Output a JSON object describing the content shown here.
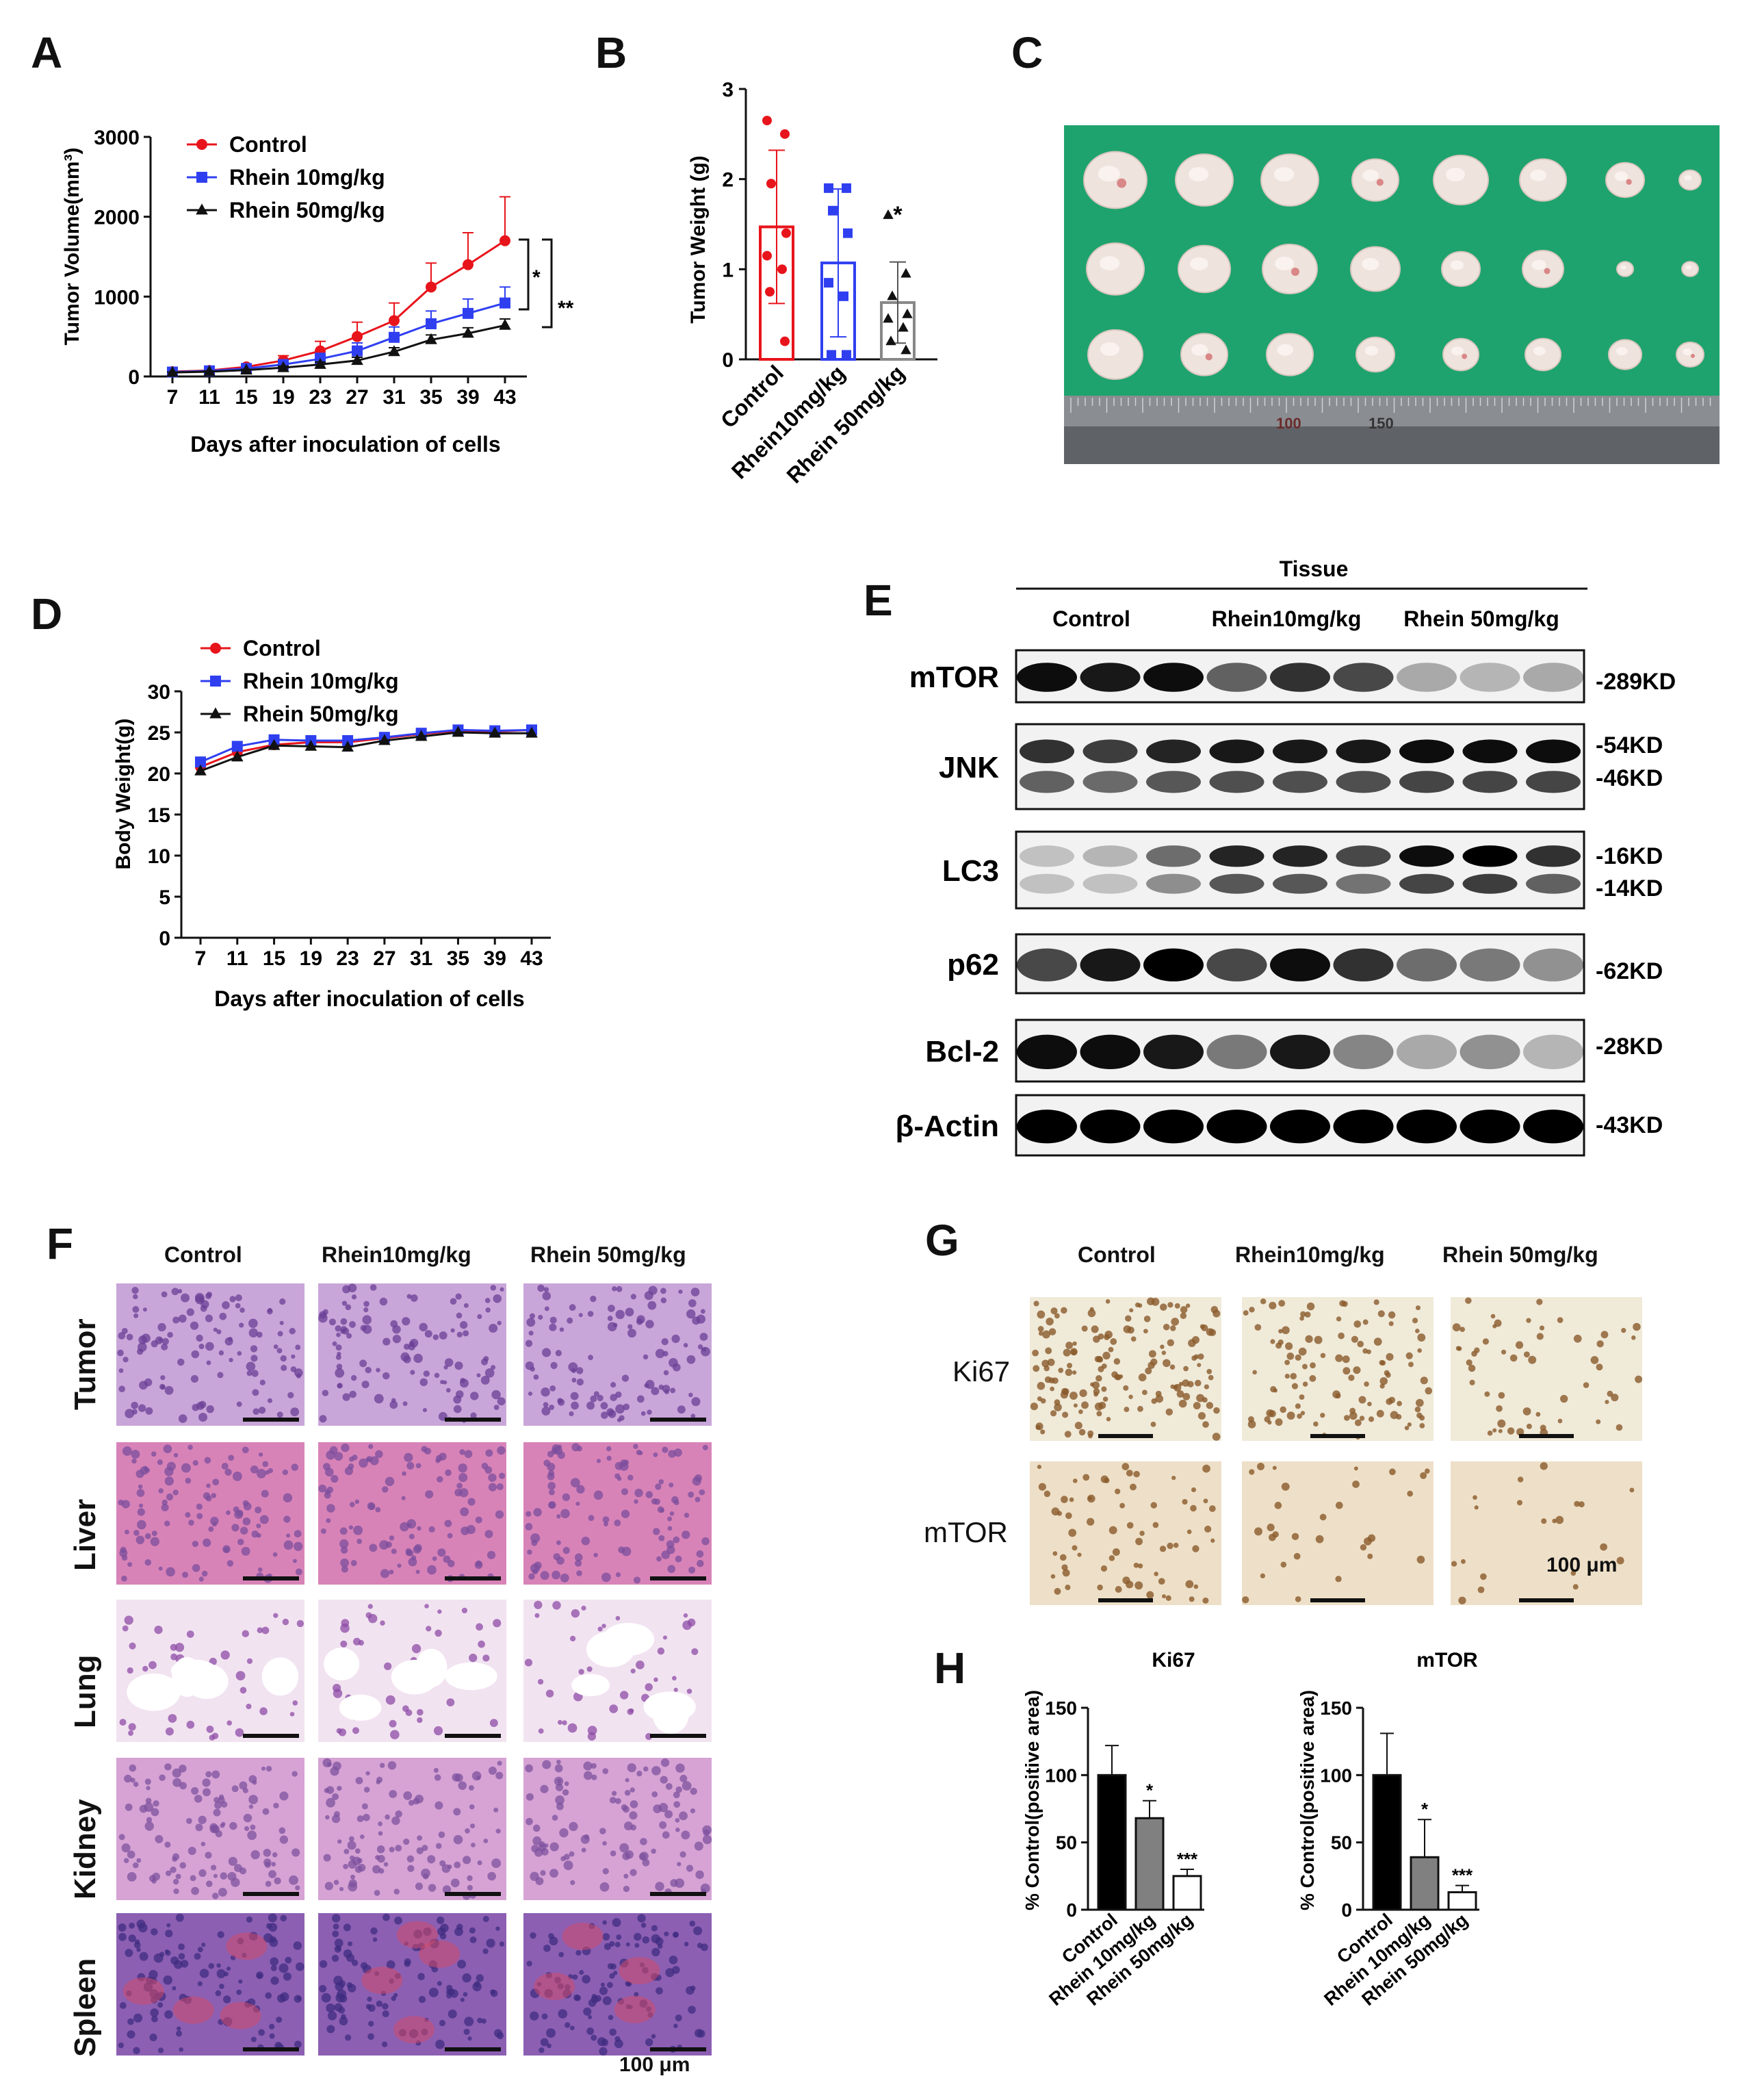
{
  "panels": {
    "A": "A",
    "B": "B",
    "C": "C",
    "D": "D",
    "E": "E",
    "F": "F",
    "G": "G",
    "H": "H"
  },
  "colors": {
    "control": "#e8141b",
    "rhein10": "#2f3ff0",
    "rhein50": "#111111",
    "green_board": "#1fa36e"
  },
  "panel_a": {
    "ylabel": "Tumor Volume(mm³)",
    "xlabel": "Days after inoculation of cells",
    "legend": [
      "Control",
      "Rhein 10mg/kg",
      "Rhein 50mg/kg"
    ],
    "sig": [
      "*",
      "**"
    ]
  },
  "panel_b": {
    "ylabel": "Tumor Weight (g)",
    "sig": "*"
  },
  "panel_d": {
    "ylabel": "Body Weight(g)",
    "xlabel": "Days after inoculation of cells",
    "legend": [
      "Control",
      "Rhein 10mg/kg",
      "Rhein 50mg/kg"
    ]
  },
  "panel_c": {
    "ruler_marks": [
      "100",
      "150"
    ]
  },
  "panel_e": {
    "header": "Tissue",
    "groups": [
      "Control",
      "Rhein10mg/kg",
      "Rhein 50mg/kg"
    ],
    "proteins": [
      "mTOR",
      "JNK",
      "LC3",
      "p62",
      "Bcl-2",
      "β-Actin"
    ],
    "sizes": [
      [
        "-289KD"
      ],
      [
        "-54KD",
        "-46KD"
      ],
      [
        "-16KD",
        "-14KD"
      ],
      [
        "-62KD"
      ],
      [
        "-28KD"
      ],
      [
        "-43KD"
      ]
    ]
  },
  "panel_f": {
    "cols": [
      "Control",
      "Rhein10mg/kg",
      "Rhein 50mg/kg"
    ],
    "rows": [
      "Tumor",
      "Liver",
      "Lung",
      "Kidney",
      "Spleen"
    ],
    "scale": "100 μm"
  },
  "panel_g": {
    "cols": [
      "Control",
      "Rhein10mg/kg",
      "Rhein 50mg/kg"
    ],
    "rows": [
      "Ki67",
      "mTOR"
    ],
    "scale": "100 μm"
  },
  "panel_h": {
    "ylabel": "% Control(positive area)",
    "titles": [
      "Ki67",
      "mTOR"
    ]
  },
  "chart_data": [
    {
      "type": "line",
      "panel": "A",
      "xlabel": "Days after inoculation of cells",
      "ylabel": "Tumor Volume(mm³)",
      "x": [
        7,
        11,
        15,
        19,
        23,
        27,
        31,
        35,
        39,
        43
      ],
      "ylim": [
        0,
        3000
      ],
      "yticks": [
        0,
        1000,
        2000,
        3000
      ],
      "series": [
        {
          "name": "Control",
          "values": [
            60,
            75,
            120,
            200,
            320,
            500,
            700,
            1120,
            1400,
            1700
          ],
          "errors": [
            10,
            15,
            30,
            60,
            120,
            180,
            220,
            300,
            400,
            550
          ]
        },
        {
          "name": "Rhein 10mg/kg",
          "values": [
            55,
            70,
            100,
            150,
            220,
            320,
            490,
            660,
            790,
            920
          ],
          "errors": [
            10,
            10,
            20,
            40,
            70,
            100,
            130,
            160,
            180,
            200
          ]
        },
        {
          "name": "Rhein 50mg/kg",
          "values": [
            50,
            60,
            80,
            110,
            150,
            200,
            310,
            460,
            540,
            640
          ],
          "errors": [
            5,
            8,
            10,
            20,
            30,
            40,
            50,
            60,
            70,
            80
          ]
        }
      ]
    },
    {
      "type": "bar",
      "panel": "B",
      "ylabel": "Tumor Weight (g)",
      "categories": [
        "Control",
        "Rhein10mg/kg",
        "Rhein 50mg/kg"
      ],
      "values": [
        1.47,
        1.07,
        0.63
      ],
      "errors": [
        0.85,
        0.82,
        0.45
      ],
      "points": [
        [
          2.65,
          2.5,
          1.95,
          1.4,
          1.15,
          1.0,
          0.75,
          0.2
        ],
        [
          1.9,
          1.9,
          1.65,
          1.4,
          0.85,
          0.7,
          0.05,
          0.05
        ],
        [
          1.6,
          0.95,
          0.7,
          0.5,
          0.45,
          0.35,
          0.2,
          0.1
        ]
      ],
      "ylim": [
        0,
        3
      ],
      "yticks": [
        0,
        1,
        2,
        3
      ]
    },
    {
      "type": "line",
      "panel": "D",
      "xlabel": "Days after inoculation of cells",
      "ylabel": "Body Weight(g)",
      "x": [
        7,
        11,
        15,
        19,
        23,
        27,
        31,
        35,
        39,
        43
      ],
      "ylim": [
        0,
        30
      ],
      "yticks": [
        0,
        5,
        10,
        15,
        20,
        25,
        30
      ],
      "series": [
        {
          "name": "Control",
          "values": [
            20.8,
            22.6,
            23.5,
            23.8,
            23.8,
            24.3,
            24.8,
            25.2,
            25.1,
            25.3
          ]
        },
        {
          "name": "Rhein 10mg/kg",
          "values": [
            21.4,
            23.3,
            24.1,
            24.0,
            24.0,
            24.4,
            24.9,
            25.3,
            25.2,
            25.3
          ]
        },
        {
          "name": "Rhein 50mg/kg",
          "values": [
            20.3,
            22.0,
            23.4,
            23.3,
            23.2,
            24.0,
            24.5,
            25.0,
            24.9,
            24.9
          ]
        }
      ]
    },
    {
      "type": "bar",
      "panel": "H-Ki67",
      "title": "Ki67",
      "ylabel": "% Control(positive area)",
      "categories": [
        "Control",
        "Rhein 10mg/kg",
        "Rhein 50mg/kg"
      ],
      "values": [
        100,
        68,
        25
      ],
      "errors": [
        22,
        13,
        5
      ],
      "sig": [
        "",
        "*",
        "***"
      ],
      "ylim": [
        0,
        150
      ],
      "yticks": [
        0,
        50,
        100,
        150
      ]
    },
    {
      "type": "bar",
      "panel": "H-mTOR",
      "title": "mTOR",
      "ylabel": "% Control(positive area)",
      "categories": [
        "Control",
        "Rhein 10mg/kg",
        "Rhein 50mg/kg"
      ],
      "values": [
        100,
        39,
        13
      ],
      "errors": [
        31,
        28,
        5
      ],
      "sig": [
        "",
        "*",
        "***"
      ],
      "ylim": [
        0,
        150
      ],
      "yticks": [
        0,
        50,
        100,
        150
      ]
    }
  ]
}
